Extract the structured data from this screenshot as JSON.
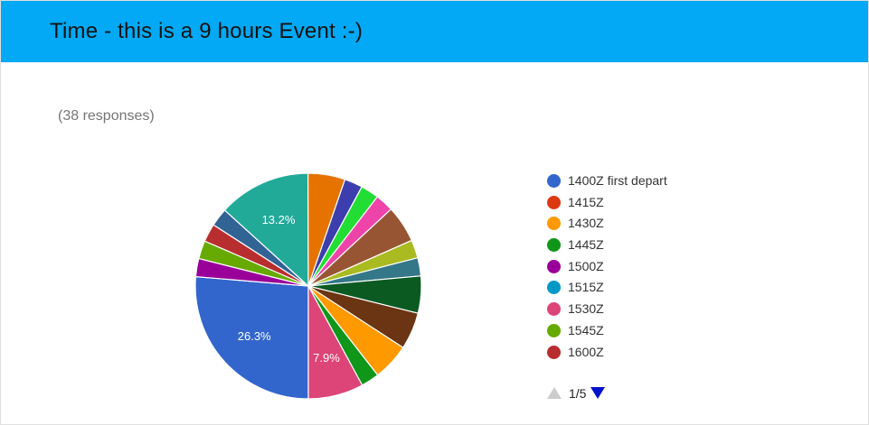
{
  "header": {
    "title": "Time - this is a 9 hours Event :-)",
    "color": "#03a9f4"
  },
  "summary": {
    "responses": "(38 responses)"
  },
  "pager": {
    "text": "1/5",
    "up_icon": "triangle-up-icon",
    "down_icon": "triangle-down-icon"
  },
  "legend": [
    {
      "label": "1400Z first depart",
      "color": "#3366cc"
    },
    {
      "label": "1415Z",
      "color": "#dc3912"
    },
    {
      "label": "1430Z",
      "color": "#ff9900"
    },
    {
      "label": "1445Z",
      "color": "#109618"
    },
    {
      "label": "1500Z",
      "color": "#990099"
    },
    {
      "label": "1515Z",
      "color": "#0099c6"
    },
    {
      "label": "1530Z",
      "color": "#dd4477"
    },
    {
      "label": "1545Z",
      "color": "#66aa00"
    },
    {
      "label": "1600Z",
      "color": "#b82e2e"
    }
  ],
  "chart_data": {
    "type": "pie",
    "start_angle_deg": 90,
    "direction": "clockwise",
    "slices": [
      {
        "value": 26.3,
        "color": "#3366cc",
        "label": "26.3%"
      },
      {
        "value": 2.6,
        "color": "#990099",
        "label": ""
      },
      {
        "value": 2.6,
        "color": "#66aa00",
        "label": ""
      },
      {
        "value": 2.6,
        "color": "#b82e2e",
        "label": ""
      },
      {
        "value": 2.6,
        "color": "#316395",
        "label": ""
      },
      {
        "value": 13.2,
        "color": "#22aa99",
        "label": "13.2%"
      },
      {
        "value": 5.3,
        "color": "#e67300",
        "label": ""
      },
      {
        "value": 2.6,
        "color": "#3b3eac",
        "label": ""
      },
      {
        "value": 2.6,
        "color": "#22dd33",
        "label": ""
      },
      {
        "value": 2.6,
        "color": "#ee44aa",
        "label": ""
      },
      {
        "value": 5.3,
        "color": "#985533",
        "label": ""
      },
      {
        "value": 2.6,
        "color": "#aabb22",
        "label": ""
      },
      {
        "value": 2.6,
        "color": "#337788",
        "label": ""
      },
      {
        "value": 5.3,
        "color": "#0b5a22",
        "label": ""
      },
      {
        "value": 5.3,
        "color": "#6b3412",
        "label": ""
      },
      {
        "value": 5.3,
        "color": "#ff9900",
        "label": ""
      },
      {
        "value": 2.6,
        "color": "#109618",
        "label": ""
      },
      {
        "value": 7.9,
        "color": "#dd4477",
        "label": "7.9%"
      }
    ]
  }
}
